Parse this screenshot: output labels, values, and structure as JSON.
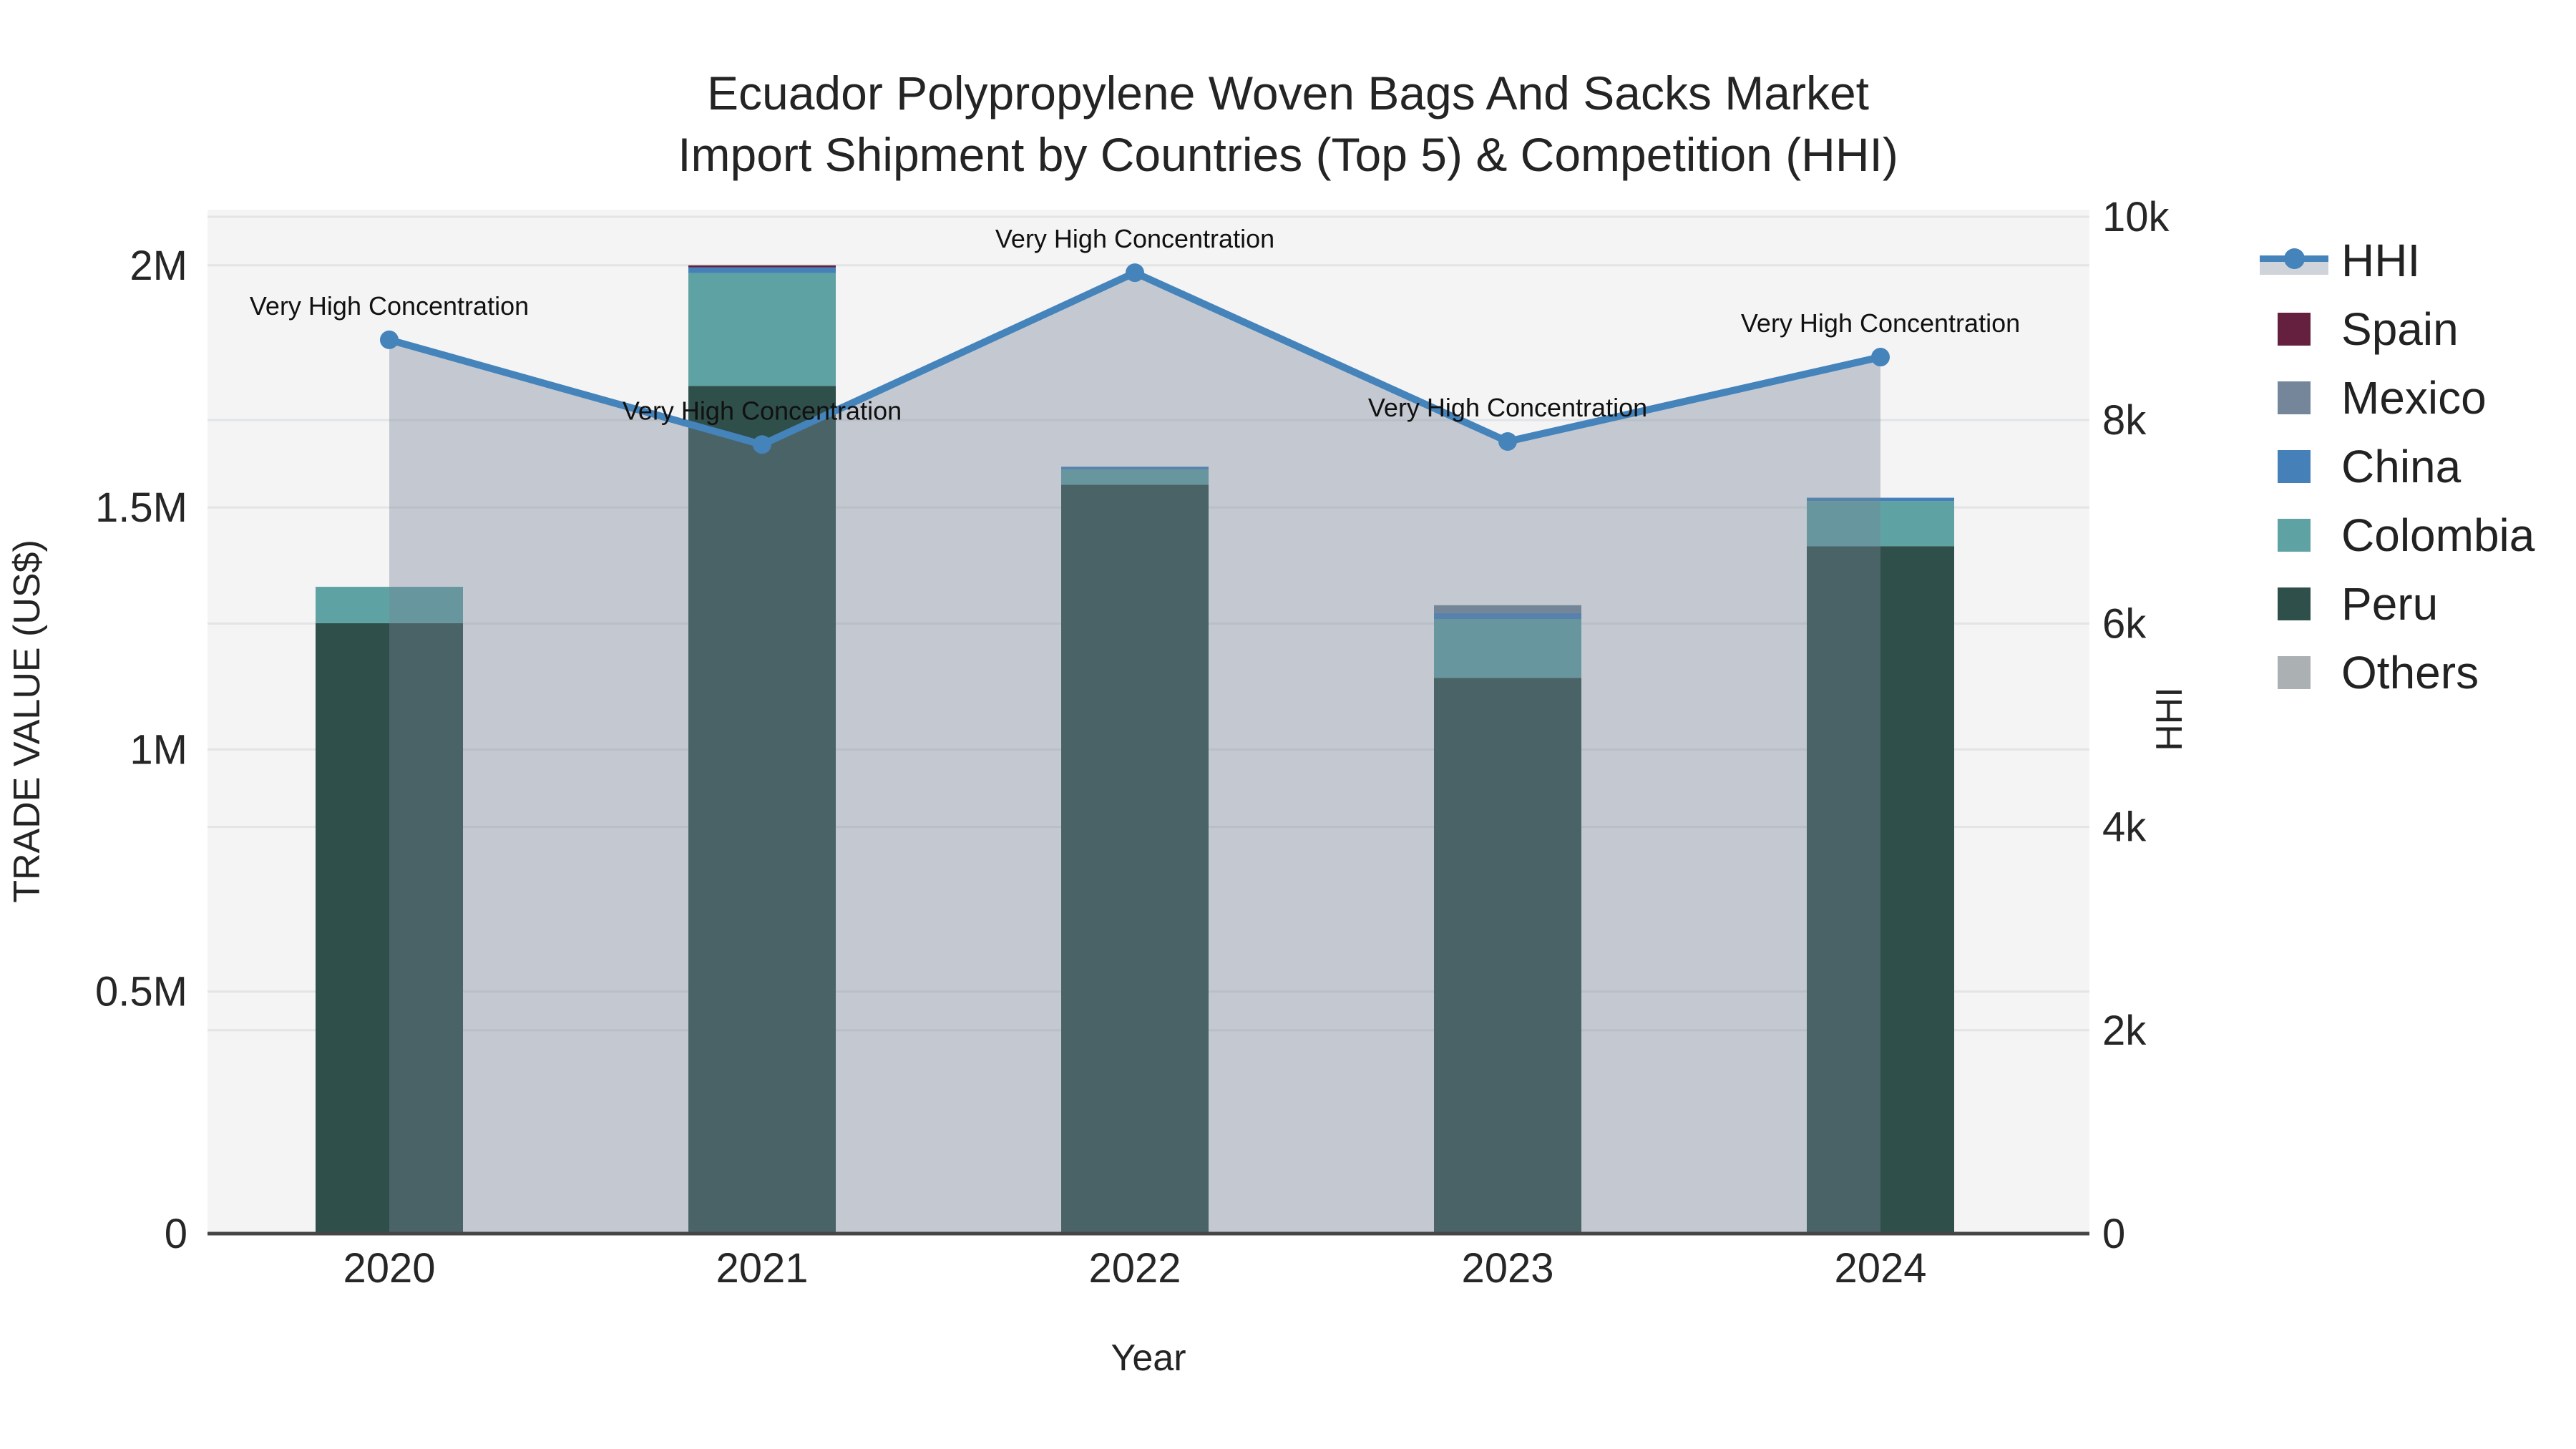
{
  "title": {
    "line1": "Ecuador Polypropylene Woven Bags And Sacks Market",
    "line2": "Import Shipment by Countries (Top 5) & Competition (HHI)"
  },
  "axes": {
    "x_title": "Year",
    "y_left_title": "TRADE VALUE (US$)",
    "y_right_title": "HHI",
    "y_left_ticks": [
      {
        "label": "0",
        "value": 0
      },
      {
        "label": "0.5M",
        "value": 500000
      },
      {
        "label": "1M",
        "value": 1000000
      },
      {
        "label": "1.5M",
        "value": 1500000
      },
      {
        "label": "2M",
        "value": 2000000
      }
    ],
    "y_right_ticks": [
      {
        "label": "0",
        "value": 0
      },
      {
        "label": "2k",
        "value": 2000
      },
      {
        "label": "4k",
        "value": 4000
      },
      {
        "label": "6k",
        "value": 6000
      },
      {
        "label": "8k",
        "value": 8000
      },
      {
        "label": "10k",
        "value": 10000
      }
    ]
  },
  "chart_data": {
    "type": "bar+line",
    "categories": [
      "2020",
      "2021",
      "2022",
      "2023",
      "2024"
    ],
    "bar_stack_order": "bottom-to-top",
    "series": [
      {
        "name": "Peru",
        "color": "#2f4f4b",
        "values": [
          1261000,
          1751000,
          1547000,
          1148000,
          1420000
        ]
      },
      {
        "name": "Colombia",
        "color": "#5fa2a3",
        "values": [
          75000,
          233000,
          31000,
          121000,
          93000
        ]
      },
      {
        "name": "China",
        "color": "#4581b8",
        "values": [
          0,
          12000,
          6000,
          13000,
          7000
        ]
      },
      {
        "name": "Mexico",
        "color": "#75869a",
        "values": [
          0,
          0,
          0,
          16000,
          0
        ]
      },
      {
        "name": "Spain",
        "color": "#65203f",
        "values": [
          0,
          4000,
          0,
          0,
          0
        ]
      },
      {
        "name": "Others",
        "color": "#abb0b3",
        "values": [
          0,
          0,
          0,
          0,
          0
        ]
      }
    ],
    "line_series": {
      "name": "HHI",
      "color": "#4583bb",
      "area_fill": "rgba(118,132,150,0.38)",
      "values": [
        8790,
        7760,
        9450,
        7790,
        8620
      ]
    },
    "annotations": [
      "Very High Concentration",
      "Very High Concentration",
      "Very High Concentration",
      "Very High Concentration",
      "Very High Concentration"
    ],
    "xlabel": "Year",
    "ylabel_left": "TRADE VALUE (US$)",
    "ylabel_right": "HHI",
    "y_left_range": [
      0,
      2115000
    ],
    "y_right_range": [
      0,
      10070
    ],
    "grid": true,
    "plot_bg": "#f4f4f5",
    "grid_color": "#e2e4e6",
    "legend_position": "right"
  },
  "legend": {
    "items": [
      {
        "label": "HHI",
        "type": "line",
        "color": "#4583bb"
      },
      {
        "label": "Spain",
        "type": "swatch",
        "color": "#65203f"
      },
      {
        "label": "Mexico",
        "type": "swatch",
        "color": "#75869a"
      },
      {
        "label": "China",
        "type": "swatch",
        "color": "#4581b8"
      },
      {
        "label": "Colombia",
        "type": "swatch",
        "color": "#5fa2a3"
      },
      {
        "label": "Peru",
        "type": "swatch",
        "color": "#2f4f4b"
      },
      {
        "label": "Others",
        "type": "swatch",
        "color": "#abb0b3"
      }
    ]
  }
}
